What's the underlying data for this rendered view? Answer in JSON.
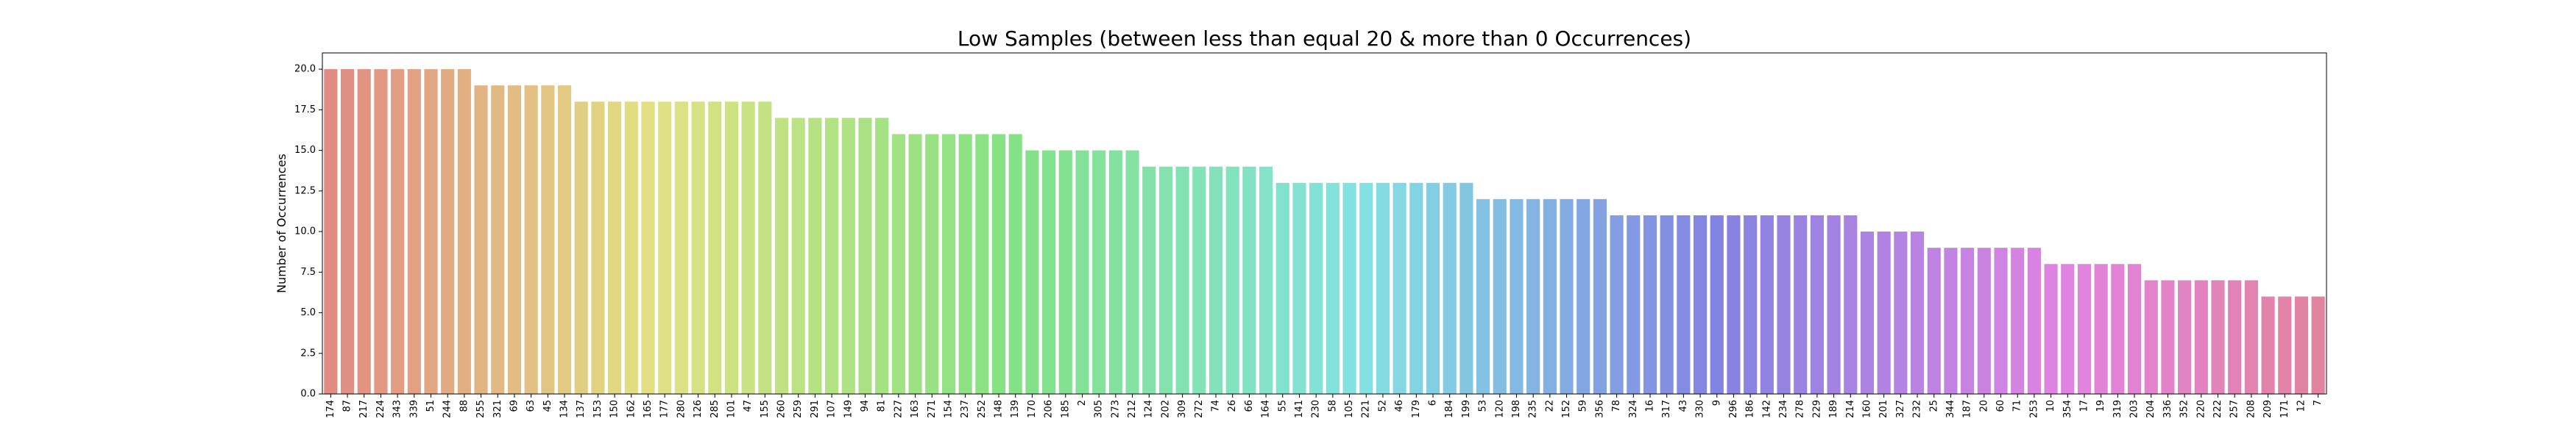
{
  "chart_data": {
    "type": "bar",
    "title": "Low Samples (between less than equal 20 & more than 0 Occurrences)",
    "xlabel": "",
    "ylabel": "Number of Occurrences",
    "ylim": [
      0,
      21
    ],
    "yticks": [
      "0.0",
      "2.5",
      "5.0",
      "7.5",
      "10.0",
      "12.5",
      "15.0",
      "17.5",
      "20.0"
    ],
    "grid": false,
    "palette": "husl",
    "categories": [
      "174",
      "87",
      "217",
      "224",
      "343",
      "339",
      "51",
      "244",
      "88",
      "255",
      "321",
      "69",
      "63",
      "45",
      "134",
      "137",
      "153",
      "150",
      "162",
      "165",
      "177",
      "280",
      "126",
      "285",
      "101",
      "47",
      "155",
      "260",
      "259",
      "291",
      "107",
      "149",
      "94",
      "81",
      "227",
      "163",
      "271",
      "154",
      "237",
      "252",
      "148",
      "139",
      "170",
      "206",
      "185",
      "2",
      "305",
      "273",
      "212",
      "124",
      "202",
      "309",
      "272",
      "74",
      "26",
      "66",
      "164",
      "55",
      "141",
      "230",
      "58",
      "105",
      "221",
      "52",
      "46",
      "179",
      "6",
      "184",
      "199",
      "53",
      "120",
      "198",
      "235",
      "22",
      "152",
      "59",
      "356",
      "78",
      "324",
      "16",
      "317",
      "43",
      "330",
      "9",
      "296",
      "186",
      "142",
      "234",
      "278",
      "229",
      "189",
      "214",
      "160",
      "201",
      "327",
      "232",
      "25",
      "344",
      "187",
      "20",
      "60",
      "71",
      "253",
      "10",
      "354",
      "17",
      "19",
      "319",
      "203",
      "204",
      "336",
      "352",
      "220",
      "222",
      "257",
      "208",
      "209",
      "171",
      "12",
      "7"
    ],
    "values": [
      20,
      20,
      20,
      20,
      20,
      20,
      20,
      20,
      20,
      19,
      19,
      19,
      19,
      19,
      19,
      18,
      18,
      18,
      18,
      18,
      18,
      18,
      18,
      18,
      18,
      18,
      18,
      17,
      17,
      17,
      17,
      17,
      17,
      17,
      16,
      16,
      16,
      16,
      16,
      16,
      16,
      16,
      15,
      15,
      15,
      15,
      15,
      15,
      15,
      14,
      14,
      14,
      14,
      14,
      14,
      14,
      14,
      13,
      13,
      13,
      13,
      13,
      13,
      13,
      13,
      13,
      13,
      13,
      13,
      12,
      12,
      12,
      12,
      12,
      12,
      12,
      12,
      11,
      11,
      11,
      11,
      11,
      11,
      11,
      11,
      11,
      11,
      11,
      11,
      11,
      11,
      11,
      10,
      10,
      10,
      10,
      9,
      9,
      9,
      9,
      9,
      9,
      9,
      8,
      8,
      8,
      8,
      8,
      8,
      7,
      7,
      7,
      7,
      7,
      7,
      7,
      6,
      6,
      6,
      6
    ]
  }
}
